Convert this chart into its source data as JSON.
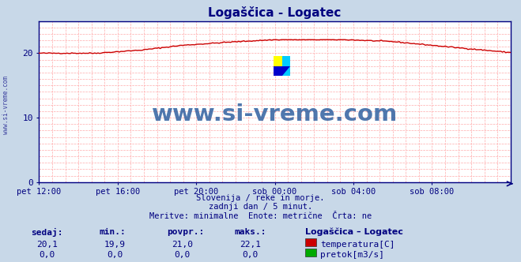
{
  "title": "Logaščica - Logatec",
  "title_color": "#000080",
  "background_color": "#c8d8e8",
  "plot_bg_color": "#ffffff",
  "ylim": [
    0,
    25
  ],
  "yticks": [
    0,
    10,
    20
  ],
  "x_labels": [
    "pet 12:00",
    "pet 16:00",
    "pet 20:00",
    "sob 00:00",
    "sob 04:00",
    "sob 08:00"
  ],
  "x_tick_pos": [
    0,
    48,
    96,
    144,
    192,
    240
  ],
  "n_points": 289,
  "temp_color": "#cc0000",
  "flow_color": "#00aa00",
  "grid_color": "#ffaaaa",
  "axis_color": "#000080",
  "text_color": "#000080",
  "watermark": "www.si-vreme.com",
  "watermark_color": "#3060a0",
  "subtitle1": "Slovenija / reke in morje.",
  "subtitle2": "zadnji dan / 5 minut.",
  "subtitle3": "Meritve: minimalne  Enote: metrične  Črta: ne",
  "legend_title": "Logaščica – Logatec",
  "legend_temp": "temperatura[C]",
  "legend_flow": "pretok[m3/s]",
  "label_sedaj": "sedaj:",
  "label_min": "min.:",
  "label_povpr": "povpr.:",
  "label_maks": "maks.:",
  "row1_vals": [
    "20,1",
    "19,9",
    "21,0",
    "22,1"
  ],
  "row2_vals": [
    "0,0",
    "0,0",
    "0,0",
    "0,0"
  ]
}
